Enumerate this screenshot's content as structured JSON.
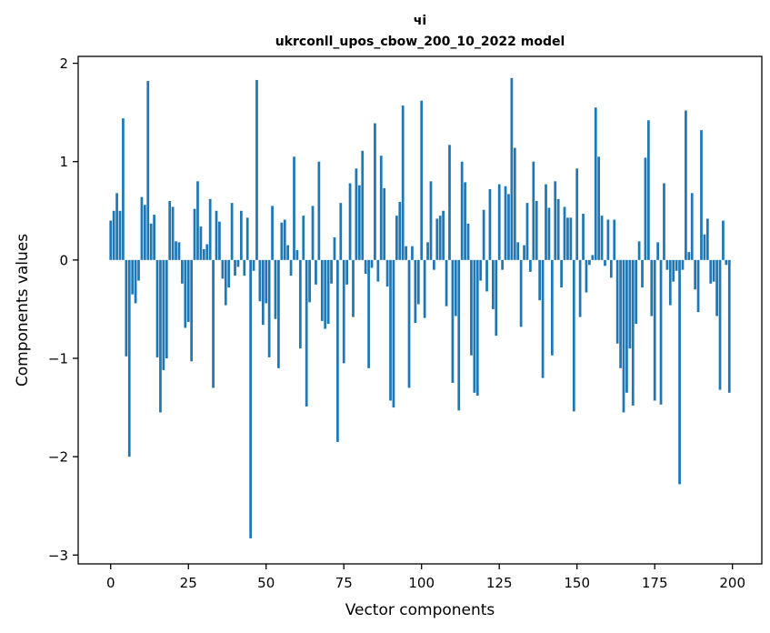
{
  "chart_data": {
    "type": "bar",
    "title": "чі",
    "subtitle": "ukrconll_upos_cbow_200_10_2022 model",
    "xlabel": "Vector components",
    "ylabel": "Components values",
    "n_components": 200,
    "bar_color": "#1f77b4",
    "background_color": "#ffffff",
    "grid": false,
    "legend_position": "none",
    "xticks": [
      0,
      25,
      50,
      75,
      100,
      125,
      150,
      175,
      200
    ],
    "yticks": [
      2,
      1,
      0,
      -1,
      -2,
      -3
    ],
    "xlim": [
      -10.45,
      209.45
    ],
    "ylim": [
      -3.09,
      2.07
    ],
    "values": [
      0.4,
      0.5,
      0.68,
      0.5,
      1.44,
      -0.98,
      -2.0,
      -0.35,
      -0.44,
      -0.21,
      0.64,
      0.56,
      1.82,
      0.37,
      0.46,
      -0.99,
      -1.55,
      -1.12,
      -1.0,
      0.6,
      0.54,
      0.19,
      0.18,
      -0.24,
      -0.69,
      -0.63,
      -1.03,
      0.52,
      0.8,
      0.34,
      0.11,
      0.16,
      0.62,
      -1.3,
      0.5,
      0.39,
      -0.19,
      -0.46,
      -0.28,
      0.58,
      -0.16,
      -0.07,
      0.5,
      -0.16,
      0.43,
      -2.83,
      -0.11,
      1.83,
      -0.42,
      -0.66,
      -0.44,
      -0.99,
      0.55,
      -0.6,
      -1.1,
      0.38,
      0.41,
      0.15,
      -0.16,
      1.05,
      0.1,
      -0.9,
      0.45,
      -1.49,
      -0.43,
      0.55,
      -0.25,
      1.0,
      -0.62,
      -0.7,
      -0.65,
      -0.24,
      0.23,
      -1.85,
      0.58,
      -1.05,
      -0.25,
      0.78,
      -0.58,
      0.93,
      0.76,
      1.11,
      -0.14,
      -1.1,
      -0.08,
      1.39,
      -0.22,
      1.06,
      0.73,
      -0.27,
      -1.43,
      -1.5,
      0.45,
      0.59,
      1.57,
      0.14,
      -1.3,
      0.14,
      -0.64,
      -0.45,
      1.62,
      -0.59,
      0.18,
      0.8,
      -0.1,
      0.42,
      0.45,
      0.5,
      -0.47,
      1.17,
      -1.25,
      -0.57,
      -1.53,
      1.0,
      0.79,
      0.37,
      -0.97,
      -1.35,
      -1.38,
      -0.21,
      0.51,
      -0.32,
      0.72,
      -0.5,
      -0.77,
      0.77,
      -0.1,
      0.75,
      0.67,
      1.85,
      1.14,
      0.18,
      -0.68,
      0.15,
      0.58,
      -0.12,
      1.0,
      0.6,
      -0.41,
      -1.2,
      0.77,
      0.53,
      -0.97,
      0.8,
      0.62,
      -0.28,
      0.54,
      0.43,
      0.43,
      -1.54,
      0.93,
      -0.58,
      0.47,
      -0.33,
      -0.05,
      0.05,
      1.55,
      1.05,
      0.45,
      -0.06,
      0.41,
      -0.18,
      0.41,
      -0.85,
      -1.1,
      -1.55,
      -1.35,
      -0.9,
      -1.48,
      -0.65,
      0.19,
      -0.28,
      1.04,
      1.42,
      -0.57,
      -1.43,
      0.18,
      -1.47,
      0.78,
      -0.1,
      -0.46,
      -0.22,
      -0.11,
      -2.28,
      -0.1,
      1.52,
      0.08,
      0.68,
      -0.3,
      -0.53,
      1.32,
      0.26,
      0.42,
      -0.24,
      -0.22,
      -0.57,
      -1.32,
      0.4,
      -0.05,
      -1.35
    ]
  }
}
